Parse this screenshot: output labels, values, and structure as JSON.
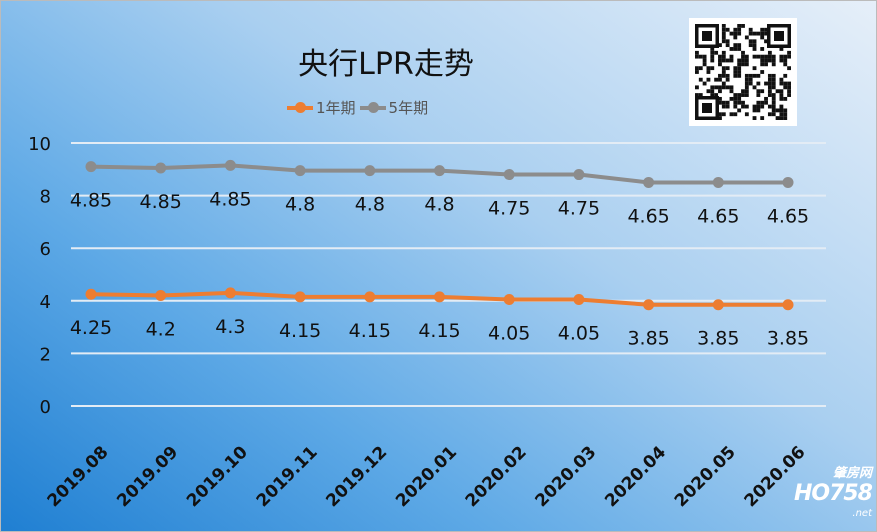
{
  "chart_data": {
    "type": "line",
    "stacked": true,
    "title": "央行LPR走势",
    "categories": [
      "2019.08",
      "2019.09",
      "2019.10",
      "2019.11",
      "2019.12",
      "2020.01",
      "2020.02",
      "2020.03",
      "2020.04",
      "2020.05",
      "2020.06"
    ],
    "series": [
      {
        "name": "1年期",
        "color": "#ed7d31",
        "values": [
          4.25,
          4.2,
          4.3,
          4.15,
          4.15,
          4.15,
          4.05,
          4.05,
          3.85,
          3.85,
          3.85
        ]
      },
      {
        "name": "5年期",
        "color": "#8c8c8c",
        "values": [
          4.85,
          4.85,
          4.85,
          4.8,
          4.8,
          4.8,
          4.75,
          4.75,
          4.65,
          4.65,
          4.65
        ]
      }
    ],
    "yticks": [
      0,
      2,
      4,
      6,
      8,
      10
    ],
    "ylim": [
      0,
      10
    ],
    "grid": true,
    "legend": "top"
  },
  "watermark": {
    "logo": "HO758",
    "cn": "肇房网",
    "net": ".net"
  }
}
